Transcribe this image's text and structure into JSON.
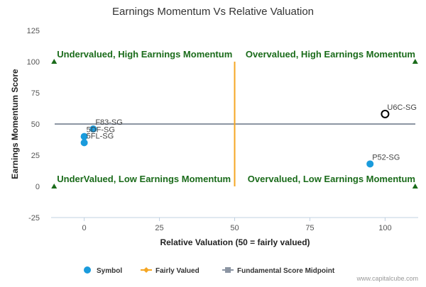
{
  "chart_data": {
    "type": "scatter",
    "title": "Earnings Momentum Vs Relative Valuation",
    "xlabel": "Relative Valuation (50 = fairly valued)",
    "ylabel": "Earnings Momentum Score",
    "xlim": [
      -11,
      111
    ],
    "ylim": [
      -25,
      125
    ],
    "x_ticks": [
      0,
      25,
      50,
      75,
      100
    ],
    "y_ticks": [
      -25,
      0,
      25,
      50,
      75,
      100,
      125
    ],
    "grid": false,
    "legend_position": "bottom",
    "series": [
      {
        "name": "Symbol",
        "color": "#1a9bdc",
        "points": [
          {
            "label": "F83-SG",
            "x": 3,
            "y": 46
          },
          {
            "label": "5DF-SG",
            "x": 0,
            "y": 40
          },
          {
            "label": "5FL-SG",
            "x": 0,
            "y": 35
          },
          {
            "label": "P52-SG",
            "x": 95,
            "y": 18
          },
          {
            "label": "U6C-SG",
            "x": 100,
            "y": 58,
            "highlighted": true
          }
        ]
      }
    ],
    "fairly_valued": {
      "name": "Fairly Valued",
      "x": 50,
      "y_range": [
        0,
        100
      ],
      "color": "#f5a623"
    },
    "midpoint": {
      "name": "Fundamental Score Midpoint",
      "y": 50,
      "color": "#8c95a3"
    },
    "quadrant_labels": [
      {
        "text": "Undervalued, High Earnings Momentum",
        "x": -10,
        "y": 100,
        "anchor": "start"
      },
      {
        "text": "Overvalued, High Earnings Momentum",
        "x": 111,
        "y": 100,
        "anchor": "end"
      },
      {
        "text": "UnderValued, Low Earnings Momentum",
        "x": -10,
        "y": 0,
        "anchor": "start"
      },
      {
        "text": "Overvalued, Low Earnings Momentum",
        "x": 111,
        "y": 0,
        "anchor": "end"
      }
    ],
    "corner_markers": [
      {
        "x": -10,
        "y": 100
      },
      {
        "x": 110,
        "y": 100
      },
      {
        "x": -10,
        "y": 0
      },
      {
        "x": 110,
        "y": 0
      }
    ],
    "quadrant_color": "#1a6b1a"
  },
  "legend": {
    "items": [
      {
        "label": "Symbol",
        "kind": "circle",
        "color": "#1a9bdc"
      },
      {
        "label": "Fairly Valued",
        "kind": "diamond-line",
        "color": "#f5a623"
      },
      {
        "label": "Fundamental Score Midpoint",
        "kind": "square-line",
        "color": "#8c95a3"
      }
    ]
  },
  "credit": "www.capitalcube.com"
}
